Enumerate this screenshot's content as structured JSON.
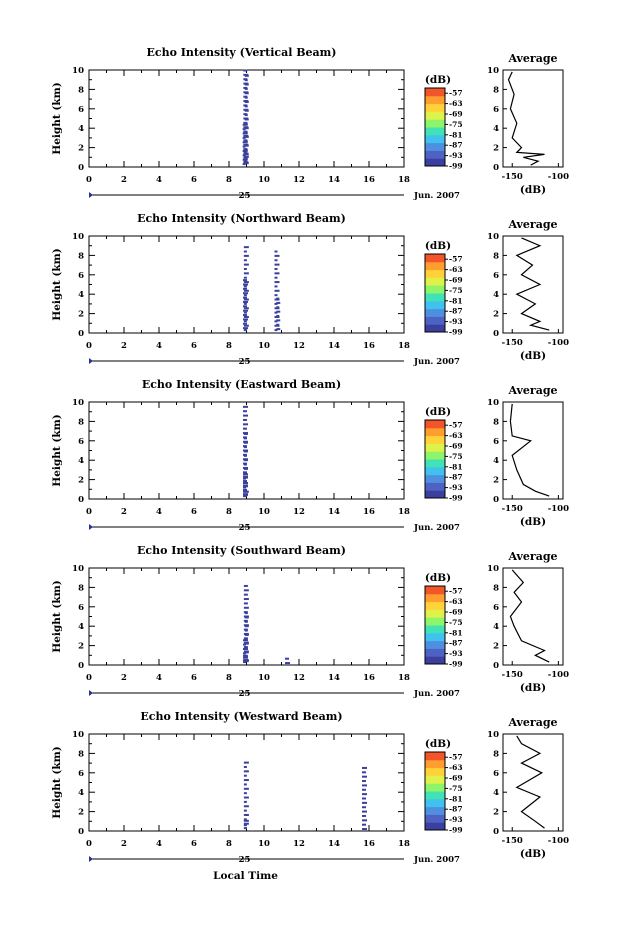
{
  "chart_data": {
    "type": "heatmap",
    "xlabel": "Local Time",
    "x_ticks": [
      "0",
      "2",
      "4",
      "6",
      "8",
      "10",
      "12",
      "14",
      "16",
      "18"
    ],
    "xlim": [
      0,
      18
    ],
    "date_day": "25",
    "date_month": "Jun. 2007",
    "colorbar": {
      "unit": "(dB)",
      "labels": [
        "-57",
        "-63",
        "-69",
        "-75",
        "-81",
        "-87",
        "-93",
        "-99"
      ],
      "range": [
        -99,
        -54
      ],
      "colors": [
        "#3b3f9e",
        "#4e62c4",
        "#4f8fe0",
        "#3fc3ee",
        "#41e3b6",
        "#8ef56a",
        "#dff24a",
        "#ffd23a",
        "#ff9e2e",
        "#f2552a"
      ]
    },
    "avg_xlabel": "(dB)",
    "avg_x_ticks": [
      "-150",
      "-100"
    ],
    "avg_xlim": [
      -160,
      -95
    ],
    "panels": [
      {
        "title": "Echo Intensity (Vertical Beam)",
        "ylabel": "Height (km)",
        "y_ticks": [
          "0",
          "2",
          "4",
          "6",
          "8",
          "10"
        ],
        "ylim": [
          0,
          10
        ],
        "cells": [
          [
            8.82,
            0.5,
            10.0
          ],
          [
            8.9,
            0.4,
            9.4
          ],
          [
            8.78,
            0.3,
            4.5
          ],
          [
            8.85,
            0.6,
            1.5
          ]
        ],
        "avg_title": "Average",
        "avg_profile": [
          [
            -130,
            0.2
          ],
          [
            -122,
            0.6
          ],
          [
            -138,
            1.0
          ],
          [
            -115,
            1.3
          ],
          [
            -145,
            1.5
          ],
          [
            -140,
            2.0
          ],
          [
            -150,
            3.0
          ],
          [
            -145,
            4.5
          ],
          [
            -152,
            6.0
          ],
          [
            -148,
            7.5
          ],
          [
            -154,
            9.0
          ],
          [
            -150,
            9.8
          ]
        ]
      },
      {
        "title": "Echo Intensity (Northward Beam)",
        "ylabel": "Height (km)",
        "y_ticks": [
          "0",
          "2",
          "4",
          "6",
          "8",
          "10"
        ],
        "ylim": [
          0,
          10
        ],
        "cells": [
          [
            8.85,
            0.3,
            9.0
          ],
          [
            10.6,
            0.3,
            8.5
          ],
          [
            8.8,
            0.5,
            5.5
          ],
          [
            10.7,
            0.4,
            4.0
          ]
        ],
        "avg_title": "Average",
        "avg_profile": [
          [
            -110,
            0.3
          ],
          [
            -130,
            0.8
          ],
          [
            -120,
            1.2
          ],
          [
            -140,
            2.0
          ],
          [
            -125,
            3.0
          ],
          [
            -145,
            4.0
          ],
          [
            -120,
            5.0
          ],
          [
            -140,
            6.0
          ],
          [
            -128,
            7.0
          ],
          [
            -145,
            8.0
          ],
          [
            -120,
            9.0
          ],
          [
            -140,
            9.8
          ]
        ]
      },
      {
        "title": "Echo Intensity (Eastward Beam)",
        "ylabel": "Height (km)",
        "y_ticks": [
          "0",
          "2",
          "4",
          "6",
          "8",
          "10"
        ],
        "ylim": [
          0,
          10
        ],
        "cells": [
          [
            8.8,
            0.5,
            9.8
          ],
          [
            8.85,
            0.4,
            7.0
          ],
          [
            8.8,
            0.3,
            3.0
          ],
          [
            8.85,
            0.3,
            1.0
          ]
        ],
        "avg_title": "Average",
        "avg_profile": [
          [
            -110,
            0.3
          ],
          [
            -125,
            0.8
          ],
          [
            -138,
            1.5
          ],
          [
            -145,
            3.0
          ],
          [
            -150,
            4.5
          ],
          [
            -130,
            6.0
          ],
          [
            -150,
            6.5
          ],
          [
            -152,
            8.0
          ],
          [
            -150,
            9.8
          ]
        ]
      },
      {
        "title": "Echo Intensity (Southward Beam)",
        "ylabel": "Height (km)",
        "y_ticks": [
          "0",
          "2",
          "4",
          "6",
          "8",
          "10"
        ],
        "ylim": [
          0,
          10
        ],
        "cells": [
          [
            8.85,
            0.5,
            8.4
          ],
          [
            8.9,
            0.4,
            5.5
          ],
          [
            8.8,
            0.3,
            3.0
          ],
          [
            8.8,
            0.5,
            1.0
          ],
          [
            11.2,
            0.2,
            1.0
          ]
        ],
        "avg_title": "Average",
        "avg_profile": [
          [
            -110,
            0.3
          ],
          [
            -125,
            1.0
          ],
          [
            -115,
            1.5
          ],
          [
            -140,
            2.5
          ],
          [
            -148,
            4.0
          ],
          [
            -152,
            5.0
          ],
          [
            -140,
            6.5
          ],
          [
            -148,
            7.5
          ],
          [
            -138,
            8.5
          ],
          [
            -150,
            9.8
          ]
        ]
      },
      {
        "title": "Echo Intensity (Westward Beam)",
        "ylabel": "Height (km)",
        "y_ticks": [
          "0",
          "2",
          "4",
          "6",
          "8",
          "10"
        ],
        "ylim": [
          0,
          10
        ],
        "cells": [
          [
            8.85,
            0.3,
            7.2
          ],
          [
            15.6,
            0.2,
            6.6
          ],
          [
            8.85,
            0.6,
            1.2
          ]
        ],
        "avg_title": "Average",
        "avg_profile": [
          [
            -115,
            0.3
          ],
          [
            -125,
            1.0
          ],
          [
            -140,
            2.0
          ],
          [
            -120,
            3.5
          ],
          [
            -145,
            4.5
          ],
          [
            -118,
            6.0
          ],
          [
            -140,
            7.0
          ],
          [
            -120,
            8.0
          ],
          [
            -140,
            9.0
          ],
          [
            -145,
            9.8
          ]
        ]
      }
    ]
  }
}
